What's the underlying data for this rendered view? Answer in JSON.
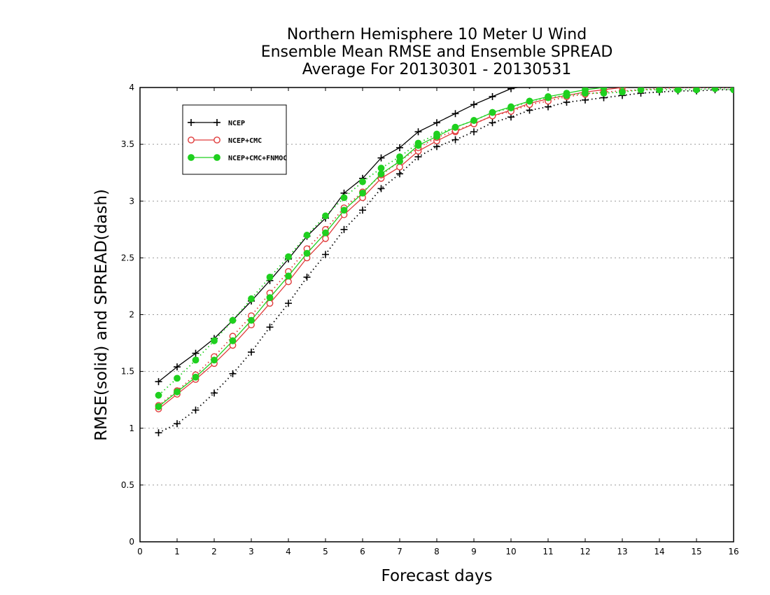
{
  "chart_data": {
    "type": "line",
    "title": [
      "Northern Hemisphere 10 Meter U Wind",
      "Ensemble Mean RMSE and Ensemble SPREAD",
      "Average For 20130301 - 20130531"
    ],
    "xlabel": "Forecast days",
    "ylabel": "RMSE(solid) and SPREAD(dash)",
    "xlim": [
      0,
      16
    ],
    "ylim": [
      0,
      4
    ],
    "xticks": [
      0,
      1,
      2,
      3,
      4,
      5,
      6,
      7,
      8,
      9,
      10,
      11,
      12,
      13,
      14,
      15,
      16
    ],
    "yticks": [
      0,
      0.5,
      1,
      1.5,
      2,
      2.5,
      3,
      3.5,
      4
    ],
    "ytick_labels": [
      "0",
      "0.5",
      "1",
      "1.5",
      "2",
      "2.5",
      "3",
      "3.5",
      "4"
    ],
    "grid": "horizontal-dotted",
    "legend_position": "top-left",
    "x": [
      0.5,
      1,
      1.5,
      2,
      2.5,
      3,
      3.5,
      4,
      4.5,
      5,
      5.5,
      6,
      6.5,
      7,
      7.5,
      8,
      8.5,
      9,
      9.5,
      10,
      10.5,
      11,
      11.5,
      12,
      12.5,
      13,
      13.5,
      14,
      14.5,
      15,
      15.5,
      16
    ],
    "series": [
      {
        "name": "NCEP",
        "style": "solid",
        "marker": "plus",
        "color": "#000000",
        "values": [
          1.41,
          1.54,
          1.66,
          1.79,
          1.95,
          2.12,
          2.3,
          2.49,
          2.69,
          2.85,
          3.07,
          3.2,
          3.38,
          3.47,
          3.61,
          3.69,
          3.77,
          3.85,
          3.92,
          3.99,
          4.02,
          4.05,
          4.07,
          4.09,
          4.1,
          4.11,
          4.12,
          4.13,
          4.14,
          4.14,
          4.15,
          4.15
        ]
      },
      {
        "name": "",
        "style": "dotted",
        "marker": "plus",
        "color": "#000000",
        "values": [
          0.96,
          1.04,
          1.16,
          1.31,
          1.48,
          1.67,
          1.89,
          2.1,
          2.33,
          2.53,
          2.75,
          2.92,
          3.11,
          3.24,
          3.39,
          3.48,
          3.54,
          3.61,
          3.69,
          3.74,
          3.8,
          3.83,
          3.87,
          3.89,
          3.91,
          3.93,
          3.95,
          3.96,
          3.97,
          3.97,
          3.98,
          3.98
        ]
      },
      {
        "name": "NCEP+CMC",
        "style": "solid",
        "marker": "circle-open",
        "color": "#e03c3c",
        "values": [
          1.17,
          1.3,
          1.43,
          1.57,
          1.73,
          1.91,
          2.1,
          2.29,
          2.5,
          2.67,
          2.88,
          3.03,
          3.2,
          3.3,
          3.44,
          3.53,
          3.61,
          3.68,
          3.75,
          3.8,
          3.86,
          3.9,
          3.93,
          3.96,
          3.98,
          4.0,
          4.01,
          4.02,
          4.03,
          4.04,
          4.05,
          4.05
        ]
      },
      {
        "name": "",
        "style": "dotted",
        "marker": "circle-open",
        "color": "#e03c3c",
        "values": [
          1.2,
          1.33,
          1.47,
          1.63,
          1.81,
          1.99,
          2.19,
          2.38,
          2.58,
          2.75,
          2.94,
          3.08,
          3.23,
          3.35,
          3.47,
          3.56,
          3.62,
          3.68,
          3.75,
          3.79,
          3.85,
          3.88,
          3.92,
          3.94,
          3.96,
          3.97,
          3.98,
          3.99,
          4.0,
          4.0,
          4.0,
          4.0
        ]
      },
      {
        "name": "NCEP+CMC+FNMOC",
        "style": "solid",
        "marker": "circle-filled",
        "color": "#1fd01f",
        "values": [
          1.19,
          1.32,
          1.45,
          1.6,
          1.77,
          1.95,
          2.15,
          2.34,
          2.54,
          2.72,
          2.92,
          3.07,
          3.24,
          3.35,
          3.49,
          3.57,
          3.65,
          3.71,
          3.78,
          3.83,
          3.88,
          3.92,
          3.95,
          3.98,
          4.0,
          4.02,
          4.03,
          4.04,
          4.05,
          4.06,
          4.07,
          4.07
        ]
      },
      {
        "name": "",
        "style": "dotted",
        "marker": "circle-filled",
        "color": "#1fd01f",
        "values": [
          1.29,
          1.44,
          1.6,
          1.77,
          1.95,
          2.14,
          2.33,
          2.51,
          2.7,
          2.87,
          3.03,
          3.17,
          3.29,
          3.39,
          3.51,
          3.59,
          3.65,
          3.71,
          3.78,
          3.82,
          3.88,
          3.91,
          3.93,
          3.95,
          3.95,
          3.96,
          3.98,
          3.98,
          3.98,
          3.98,
          3.99,
          3.98
        ]
      }
    ]
  }
}
